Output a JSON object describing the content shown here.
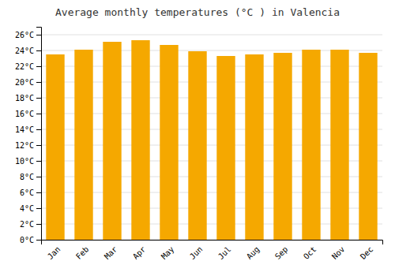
{
  "chart_data": {
    "type": "bar",
    "title": "Average monthly temperatures (°C ) in Valencia",
    "categories": [
      "Jan",
      "Feb",
      "Mar",
      "Apr",
      "May",
      "Jun",
      "Jul",
      "Aug",
      "Sep",
      "Oct",
      "Nov",
      "Dec"
    ],
    "values": [
      23.5,
      24.1,
      25.1,
      25.3,
      24.7,
      23.9,
      23.3,
      23.5,
      23.7,
      24.1,
      24.1,
      23.7
    ],
    "color": "#F5A800",
    "ylim": [
      0,
      27
    ],
    "yticks": [
      {
        "value": 0,
        "label": "0°C"
      },
      {
        "value": 2,
        "label": "2°C"
      },
      {
        "value": 4,
        "label": "4°C"
      },
      {
        "value": 6,
        "label": "6°C"
      },
      {
        "value": 8,
        "label": "8°C"
      },
      {
        "value": 10,
        "label": "10°C"
      },
      {
        "value": 12,
        "label": "12°C"
      },
      {
        "value": 14,
        "label": "14°C"
      },
      {
        "value": 16,
        "label": "16°C"
      },
      {
        "value": 18,
        "label": "18°C"
      },
      {
        "value": 20,
        "label": "20°C"
      },
      {
        "value": 22,
        "label": "22°C"
      },
      {
        "value": 24,
        "label": "24°C"
      },
      {
        "value": 26,
        "label": "26°C"
      }
    ],
    "grid": true
  }
}
